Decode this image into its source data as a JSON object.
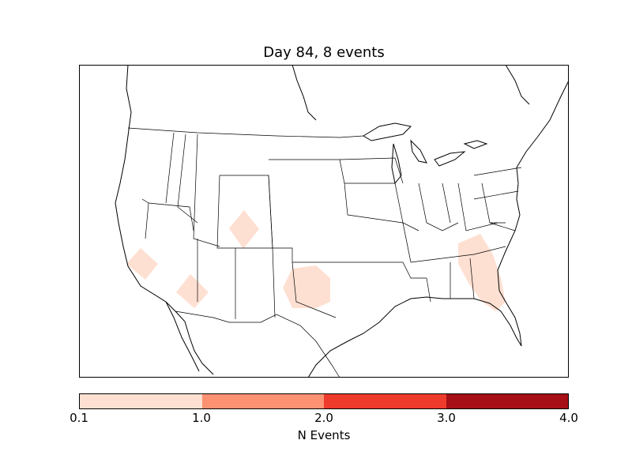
{
  "map": {
    "title": "Day 84, 8 events",
    "events": [
      {
        "region": "central-california",
        "level": "0.1-1.0"
      },
      {
        "region": "southern-nevada-arizona",
        "level": "0.1-1.0"
      },
      {
        "region": "western-colorado",
        "level": "0.1-1.0"
      },
      {
        "region": "north-texas-oklahoma",
        "level": "0.1-1.0"
      },
      {
        "region": "georgia-florida",
        "level": "0.1-1.0"
      }
    ]
  },
  "colorbar": {
    "label": "N Events",
    "ticks": [
      "0.1",
      "1.0",
      "2.0",
      "3.0",
      "4.0"
    ],
    "colors": [
      "#fee0d2",
      "#fc9272",
      "#ef3b2c",
      "#a50f15"
    ]
  },
  "colors": {
    "event_fill": "#fee0d2",
    "boundary": "#000000"
  }
}
